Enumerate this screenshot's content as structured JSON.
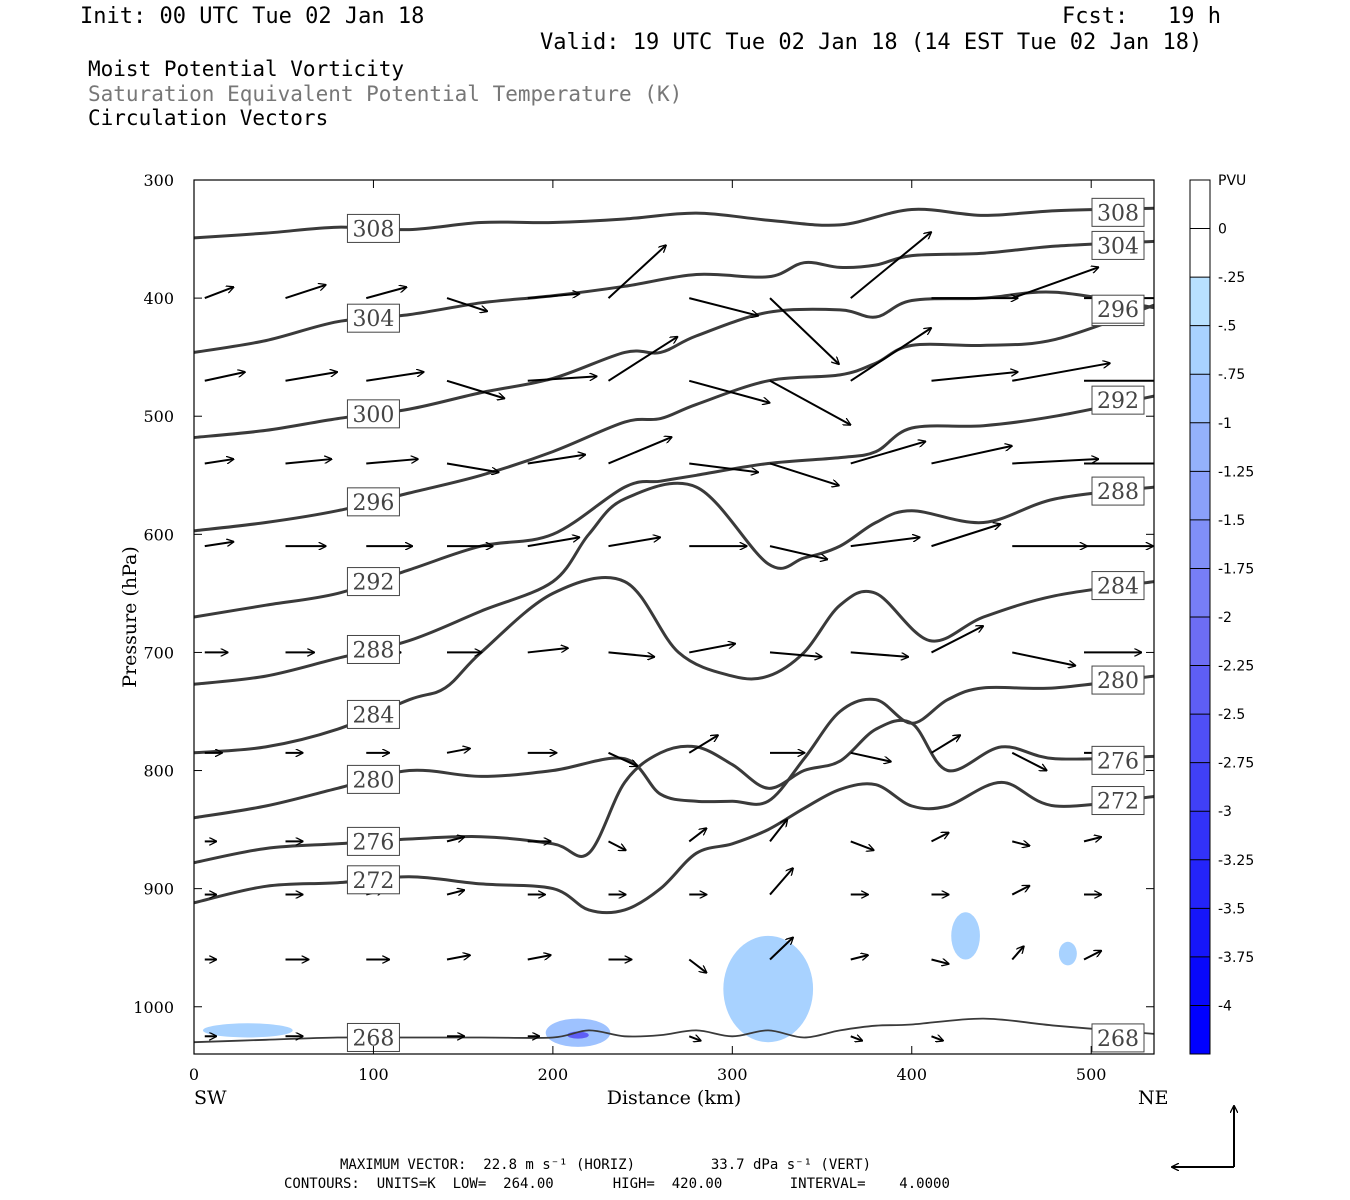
{
  "header": {
    "init": "Init: 00 UTC Tue 02 Jan 18",
    "fcst": "Fcst:   19 h",
    "valid": "Valid: 19 UTC Tue 02 Jan 18 (14 EST Tue 02 Jan 18)",
    "field1": "Moist Potential Vorticity",
    "field2": "Saturation Equivalent Potential Temperature (K)",
    "field3": "Circulation Vectors"
  },
  "footer": {
    "max_vector": "MAXIMUM VECTOR:  22.8 m s⁻¹ (HORIZ)         33.7 dPa s⁻¹ (VERT)",
    "contours": "CONTOURS:  UNITS=K  LOW=  264.00       HIGH=  420.00        INTERVAL=    4.0000"
  },
  "colors": {
    "contour": "#3a3a3a",
    "axis": "#000000"
  },
  "chart_data": {
    "type": "cross-section",
    "xlabel": "Distance (km)",
    "ylabel": "Pressure (hPa)",
    "x_left_label": "SW",
    "x_right_label": "NE",
    "xlim": [
      0,
      535
    ],
    "ylim": [
      1040,
      300
    ],
    "x_ticks": [
      0,
      100,
      200,
      300,
      400,
      500
    ],
    "y_ticks": [
      300,
      400,
      500,
      600,
      700,
      800,
      900,
      1000
    ],
    "colorbar": {
      "title": "PVU",
      "labels": [
        "0",
        "-.25",
        "-.5",
        "-.75",
        "-1",
        "-1.25",
        "-1.5",
        "-1.75",
        "-2",
        "-2.25",
        "-2.5",
        "-2.75",
        "-3",
        "-3.25",
        "-3.5",
        "-3.75",
        "-4"
      ],
      "colors": [
        "#ffffff",
        "#ffffff",
        "#b8e1ff",
        "#a8d2ff",
        "#9ec2ff",
        "#94b1fc",
        "#8aa0fa",
        "#808ff8",
        "#777ef6",
        "#6d6df4",
        "#5e5ef5",
        "#4f4ff6",
        "#4040f7",
        "#3232f8",
        "#2424f9",
        "#1616fa",
        "#0808fb",
        "#0000ff"
      ]
    },
    "contours": [
      {
        "label": "308",
        "x": [
          0,
          40,
          80,
          120,
          160,
          200,
          240,
          280,
          320,
          360,
          400,
          440,
          480,
          535
        ],
        "p": [
          349,
          345,
          340,
          342,
          336,
          336,
          333,
          328,
          334,
          338,
          325,
          330,
          326,
          324
        ]
      },
      {
        "label": "304",
        "x": [
          0,
          40,
          80,
          120,
          160,
          200,
          240,
          280,
          320,
          340,
          360,
          380,
          400,
          440,
          480,
          535
        ],
        "p": [
          446,
          436,
          420,
          414,
          404,
          398,
          390,
          380,
          382,
          370,
          374,
          372,
          364,
          362,
          356,
          352
        ]
      },
      {
        "label": "300",
        "x": [
          0,
          40,
          80,
          120,
          160,
          200,
          240,
          260,
          280,
          320,
          360,
          380,
          400,
          440,
          480,
          535
        ],
        "p": [
          518,
          512,
          502,
          494,
          480,
          468,
          446,
          446,
          432,
          412,
          410,
          416,
          402,
          400,
          395,
          408
        ]
      },
      {
        "label": "296",
        "x": [
          0,
          40,
          80,
          120,
          160,
          200,
          240,
          260,
          280,
          320,
          360,
          380,
          400,
          440,
          480,
          535
        ],
        "p": [
          597,
          590,
          580,
          565,
          550,
          530,
          505,
          502,
          490,
          470,
          465,
          455,
          440,
          440,
          435,
          406
        ]
      },
      {
        "label": "292",
        "x": [
          0,
          40,
          80,
          120,
          160,
          200,
          240,
          260,
          280,
          320,
          360,
          380,
          400,
          440,
          480,
          535
        ],
        "p": [
          670,
          660,
          650,
          630,
          610,
          600,
          560,
          555,
          550,
          540,
          535,
          530,
          510,
          508,
          500,
          483
        ]
      },
      {
        "label": "288",
        "x": [
          0,
          40,
          80,
          120,
          160,
          200,
          220,
          240,
          280,
          320,
          340,
          360,
          380,
          400,
          440,
          480,
          535
        ],
        "p": [
          727,
          720,
          705,
          690,
          665,
          640,
          600,
          570,
          560,
          625,
          620,
          610,
          590,
          580,
          590,
          570,
          560
        ]
      },
      {
        "label": "284",
        "x": [
          0,
          40,
          80,
          120,
          140,
          160,
          200,
          240,
          270,
          300,
          320,
          340,
          360,
          380,
          410,
          440,
          480,
          535
        ],
        "p": [
          785,
          780,
          765,
          740,
          730,
          700,
          650,
          640,
          700,
          720,
          720,
          700,
          660,
          650,
          690,
          670,
          652,
          640
        ]
      },
      {
        "label": "280",
        "x": [
          0,
          40,
          80,
          120,
          160,
          200,
          240,
          260,
          280,
          300,
          320,
          340,
          360,
          380,
          400,
          420,
          440,
          480,
          535
        ],
        "p": [
          840,
          830,
          815,
          800,
          805,
          800,
          790,
          820,
          826,
          826,
          826,
          790,
          750,
          740,
          760,
          740,
          730,
          730,
          720
        ]
      },
      {
        "label": "276",
        "x": [
          0,
          40,
          80,
          120,
          160,
          200,
          220,
          240,
          260,
          280,
          300,
          320,
          340,
          360,
          380,
          400,
          420,
          450,
          480,
          535
        ],
        "p": [
          878,
          866,
          862,
          858,
          856,
          862,
          870,
          810,
          785,
          780,
          795,
          815,
          800,
          792,
          765,
          760,
          800,
          780,
          790,
          788
        ]
      },
      {
        "label": "272",
        "x": [
          0,
          40,
          80,
          120,
          160,
          200,
          220,
          240,
          260,
          280,
          300,
          320,
          340,
          360,
          380,
          400,
          420,
          450,
          480,
          535
        ],
        "p": [
          912,
          898,
          895,
          890,
          896,
          900,
          918,
          918,
          900,
          870,
          862,
          850,
          832,
          816,
          812,
          830,
          830,
          810,
          830,
          822
        ]
      },
      {
        "label": "268",
        "x": [
          0,
          40,
          80,
          120,
          160,
          200,
          220,
          240,
          260,
          280,
          300,
          320,
          340,
          360,
          380,
          400,
          440,
          480,
          535
        ],
        "p": [
          1030,
          1028,
          1026,
          1026,
          1026,
          1026,
          1020,
          1025,
          1024,
          1020,
          1025,
          1020,
          1026,
          1020,
          1016,
          1015,
          1010,
          1016,
          1023
        ]
      }
    ],
    "pv_patches": [
      {
        "x": 320,
        "p": 985,
        "rx": 25,
        "ry": 45,
        "value": -0.5
      },
      {
        "x": 214,
        "p": 1022,
        "rx": 18,
        "ry": 12,
        "value": -0.75
      },
      {
        "x": 214,
        "p": 1024,
        "rx": 6,
        "ry": 3,
        "value": -2.25
      },
      {
        "x": 430,
        "p": 940,
        "rx": 8,
        "ry": 20,
        "value": -0.5
      },
      {
        "x": 487,
        "p": 955,
        "rx": 5,
        "ry": 10,
        "value": -0.5
      },
      {
        "x": 30,
        "p": 1020,
        "rx": 25,
        "ry": 6,
        "value": -0.5
      }
    ],
    "vectors": [
      {
        "x": 0,
        "p": 400,
        "u": 10,
        "w": 5
      },
      {
        "x": 45,
        "p": 400,
        "u": 14,
        "w": 6
      },
      {
        "x": 90,
        "p": 400,
        "u": 14,
        "w": 5
      },
      {
        "x": 135,
        "p": 400,
        "u": 14,
        "w": -6
      },
      {
        "x": 180,
        "p": 400,
        "u": 18,
        "w": 2
      },
      {
        "x": 225,
        "p": 400,
        "u": 20,
        "w": 24
      },
      {
        "x": 270,
        "p": 400,
        "u": 24,
        "w": -8
      },
      {
        "x": 315,
        "p": 400,
        "u": 24,
        "w": -30
      },
      {
        "x": 360,
        "p": 400,
        "u": 28,
        "w": 30
      },
      {
        "x": 405,
        "p": 400,
        "u": 30,
        "w": 0
      },
      {
        "x": 450,
        "p": 400,
        "u": 30,
        "w": 14
      },
      {
        "x": 490,
        "p": 400,
        "u": 30,
        "w": 0
      },
      {
        "x": 0,
        "p": 470,
        "u": 14,
        "w": 4
      },
      {
        "x": 45,
        "p": 470,
        "u": 18,
        "w": 4
      },
      {
        "x": 90,
        "p": 470,
        "u": 20,
        "w": 4
      },
      {
        "x": 135,
        "p": 470,
        "u": 20,
        "w": -8
      },
      {
        "x": 180,
        "p": 470,
        "u": 24,
        "w": 2
      },
      {
        "x": 225,
        "p": 470,
        "u": 24,
        "w": 20
      },
      {
        "x": 270,
        "p": 470,
        "u": 28,
        "w": -10
      },
      {
        "x": 315,
        "p": 470,
        "u": 28,
        "w": -20
      },
      {
        "x": 360,
        "p": 470,
        "u": 28,
        "w": 24
      },
      {
        "x": 405,
        "p": 470,
        "u": 30,
        "w": 4
      },
      {
        "x": 450,
        "p": 470,
        "u": 34,
        "w": 8
      },
      {
        "x": 490,
        "p": 470,
        "u": 30,
        "w": 0
      },
      {
        "x": 0,
        "p": 540,
        "u": 10,
        "w": 2
      },
      {
        "x": 45,
        "p": 540,
        "u": 16,
        "w": 2
      },
      {
        "x": 90,
        "p": 540,
        "u": 18,
        "w": 2
      },
      {
        "x": 135,
        "p": 540,
        "u": 18,
        "w": -4
      },
      {
        "x": 180,
        "p": 540,
        "u": 20,
        "w": 4
      },
      {
        "x": 225,
        "p": 540,
        "u": 22,
        "w": 12
      },
      {
        "x": 270,
        "p": 540,
        "u": 24,
        "w": -4
      },
      {
        "x": 315,
        "p": 540,
        "u": 24,
        "w": -10
      },
      {
        "x": 360,
        "p": 540,
        "u": 26,
        "w": 10
      },
      {
        "x": 405,
        "p": 540,
        "u": 28,
        "w": 8
      },
      {
        "x": 450,
        "p": 540,
        "u": 30,
        "w": 2
      },
      {
        "x": 490,
        "p": 540,
        "u": 30,
        "w": 0
      },
      {
        "x": 0,
        "p": 610,
        "u": 10,
        "w": 2
      },
      {
        "x": 45,
        "p": 610,
        "u": 14,
        "w": 0
      },
      {
        "x": 90,
        "p": 610,
        "u": 16,
        "w": 0
      },
      {
        "x": 135,
        "p": 610,
        "u": 16,
        "w": 0
      },
      {
        "x": 180,
        "p": 610,
        "u": 18,
        "w": 4
      },
      {
        "x": 225,
        "p": 610,
        "u": 18,
        "w": 4
      },
      {
        "x": 270,
        "p": 610,
        "u": 20,
        "w": 0
      },
      {
        "x": 315,
        "p": 610,
        "u": 20,
        "w": -6
      },
      {
        "x": 360,
        "p": 610,
        "u": 24,
        "w": 4
      },
      {
        "x": 405,
        "p": 610,
        "u": 24,
        "w": 10
      },
      {
        "x": 450,
        "p": 610,
        "u": 26,
        "w": 0
      },
      {
        "x": 490,
        "p": 610,
        "u": 24,
        "w": 0
      },
      {
        "x": 0,
        "p": 700,
        "u": 8,
        "w": 0
      },
      {
        "x": 45,
        "p": 700,
        "u": 10,
        "w": 0
      },
      {
        "x": 90,
        "p": 700,
        "u": 12,
        "w": 0
      },
      {
        "x": 135,
        "p": 700,
        "u": 12,
        "w": 0
      },
      {
        "x": 180,
        "p": 700,
        "u": 14,
        "w": 2
      },
      {
        "x": 225,
        "p": 700,
        "u": 16,
        "w": -2
      },
      {
        "x": 270,
        "p": 700,
        "u": 16,
        "w": 4
      },
      {
        "x": 315,
        "p": 700,
        "u": 18,
        "w": -2
      },
      {
        "x": 360,
        "p": 700,
        "u": 20,
        "w": -2
      },
      {
        "x": 405,
        "p": 700,
        "u": 18,
        "w": 12
      },
      {
        "x": 450,
        "p": 700,
        "u": 22,
        "w": -6
      },
      {
        "x": 490,
        "p": 700,
        "u": 20,
        "w": 0
      },
      {
        "x": 0,
        "p": 785,
        "u": 6,
        "w": 0
      },
      {
        "x": 45,
        "p": 785,
        "u": 6,
        "w": 0
      },
      {
        "x": 90,
        "p": 785,
        "u": 8,
        "w": 0
      },
      {
        "x": 135,
        "p": 785,
        "u": 8,
        "w": 2
      },
      {
        "x": 180,
        "p": 785,
        "u": 10,
        "w": 0
      },
      {
        "x": 225,
        "p": 785,
        "u": 10,
        "w": -6
      },
      {
        "x": 270,
        "p": 785,
        "u": 10,
        "w": 8
      },
      {
        "x": 315,
        "p": 785,
        "u": 12,
        "w": 0
      },
      {
        "x": 360,
        "p": 785,
        "u": 14,
        "w": -4
      },
      {
        "x": 405,
        "p": 785,
        "u": 10,
        "w": 8
      },
      {
        "x": 450,
        "p": 785,
        "u": 12,
        "w": -8
      },
      {
        "x": 490,
        "p": 785,
        "u": 12,
        "w": 0
      },
      {
        "x": 0,
        "p": 860,
        "u": 4,
        "w": 0
      },
      {
        "x": 45,
        "p": 860,
        "u": 6,
        "w": 0
      },
      {
        "x": 90,
        "p": 860,
        "u": 6,
        "w": 0
      },
      {
        "x": 135,
        "p": 860,
        "u": 6,
        "w": 2
      },
      {
        "x": 180,
        "p": 860,
        "u": 8,
        "w": 0
      },
      {
        "x": 225,
        "p": 860,
        "u": 6,
        "w": -4
      },
      {
        "x": 270,
        "p": 860,
        "u": 6,
        "w": 6
      },
      {
        "x": 315,
        "p": 860,
        "u": 6,
        "w": 10
      },
      {
        "x": 360,
        "p": 860,
        "u": 8,
        "w": -4
      },
      {
        "x": 405,
        "p": 860,
        "u": 6,
        "w": 4
      },
      {
        "x": 450,
        "p": 860,
        "u": 6,
        "w": -2
      },
      {
        "x": 490,
        "p": 860,
        "u": 6,
        "w": 2
      },
      {
        "x": 0,
        "p": 905,
        "u": 4,
        "w": 0
      },
      {
        "x": 45,
        "p": 905,
        "u": 6,
        "w": 0
      },
      {
        "x": 90,
        "p": 905,
        "u": 6,
        "w": 2
      },
      {
        "x": 135,
        "p": 905,
        "u": 6,
        "w": 2
      },
      {
        "x": 180,
        "p": 905,
        "u": 6,
        "w": 0
      },
      {
        "x": 225,
        "p": 905,
        "u": 6,
        "w": 0
      },
      {
        "x": 270,
        "p": 905,
        "u": 6,
        "w": 0
      },
      {
        "x": 315,
        "p": 905,
        "u": 8,
        "w": 12
      },
      {
        "x": 360,
        "p": 905,
        "u": 6,
        "w": 0
      },
      {
        "x": 405,
        "p": 905,
        "u": 6,
        "w": 0
      },
      {
        "x": 450,
        "p": 905,
        "u": 6,
        "w": 4
      },
      {
        "x": 490,
        "p": 905,
        "u": 6,
        "w": 0
      },
      {
        "x": 0,
        "p": 960,
        "u": 4,
        "w": 0
      },
      {
        "x": 45,
        "p": 960,
        "u": 8,
        "w": 0
      },
      {
        "x": 90,
        "p": 960,
        "u": 8,
        "w": 0
      },
      {
        "x": 135,
        "p": 960,
        "u": 8,
        "w": 2
      },
      {
        "x": 180,
        "p": 960,
        "u": 8,
        "w": 2
      },
      {
        "x": 225,
        "p": 960,
        "u": 8,
        "w": 0
      },
      {
        "x": 270,
        "p": 960,
        "u": 6,
        "w": -6
      },
      {
        "x": 315,
        "p": 960,
        "u": 8,
        "w": 10
      },
      {
        "x": 360,
        "p": 960,
        "u": 6,
        "w": 2
      },
      {
        "x": 405,
        "p": 960,
        "u": 6,
        "w": -2
      },
      {
        "x": 450,
        "p": 960,
        "u": 4,
        "w": 6
      },
      {
        "x": 490,
        "p": 960,
        "u": 6,
        "w": 4
      },
      {
        "x": 0,
        "p": 1025,
        "u": 4,
        "w": 0
      },
      {
        "x": 45,
        "p": 1025,
        "u": 6,
        "w": 0
      },
      {
        "x": 90,
        "p": 1025,
        "u": 6,
        "w": 0
      },
      {
        "x": 135,
        "p": 1025,
        "u": 6,
        "w": 0
      },
      {
        "x": 180,
        "p": 1025,
        "u": 4,
        "w": 0
      },
      {
        "x": 270,
        "p": 1025,
        "u": 4,
        "w": -2
      },
      {
        "x": 360,
        "p": 1025,
        "u": 4,
        "w": -2
      },
      {
        "x": 405,
        "p": 1025,
        "u": 4,
        "w": -2
      }
    ],
    "vector_scale_km_per_unit": 1.6
  }
}
